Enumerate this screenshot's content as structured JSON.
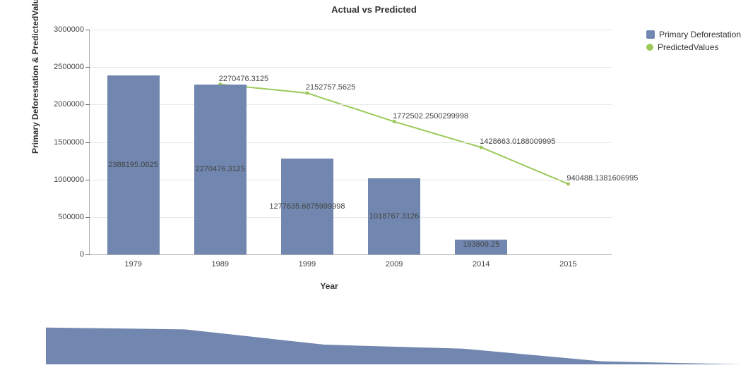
{
  "title": "Actual vs Predicted",
  "y_axis_title": "Primary Deforestation & PredictedValues",
  "x_axis_title": "Year",
  "legend": {
    "series1": {
      "label": "Primary Deforestation",
      "color": "#7187af",
      "type": "bar"
    },
    "series2": {
      "label": "PredictedValues",
      "color": "#9cc95a",
      "type": "line"
    }
  },
  "chart": {
    "type": "bar+line",
    "background_color": "#ffffff",
    "grid_color": "#e6e6e6",
    "axis_color": "#aaaaaa",
    "tick_font_size": 11,
    "categories": [
      "1979",
      "1989",
      "1999",
      "2009",
      "2014",
      "2015"
    ],
    "bars": {
      "color": "#7187af",
      "width_fraction": 0.6,
      "values": [
        2388195.0625,
        2270476.3125,
        1277635.6875999998,
        1018767.3126,
        193809.25,
        null
      ],
      "value_labels": [
        "2388195.0625",
        "2270476.3125",
        "1277635.6875999998",
        "1018767.3126",
        "193809.25",
        ""
      ]
    },
    "line": {
      "color": "#9cc95a",
      "stroke_width": 2,
      "marker": "circle",
      "marker_size": 5,
      "marker_color": "#9cc95a",
      "values": [
        null,
        2270476.3125,
        2152757.5625,
        1772502.2500299998,
        1428663.0188009995,
        940488.1381606995
      ],
      "value_labels": [
        "",
        "2270476.3125",
        "2152757.5625",
        "1772502.2500299998",
        "1428663.0188009995",
        "940488.1381606995"
      ]
    },
    "ylim": [
      0,
      3000000
    ],
    "ytick_step": 500000,
    "yticks": [
      "0",
      "500000",
      "1000000",
      "1500000",
      "2000000",
      "2500000",
      "3000000"
    ]
  },
  "overview": {
    "fill_color": "#7187af",
    "values": [
      2388195,
      2270476,
      1277636,
      1018767,
      193809,
      0
    ]
  }
}
